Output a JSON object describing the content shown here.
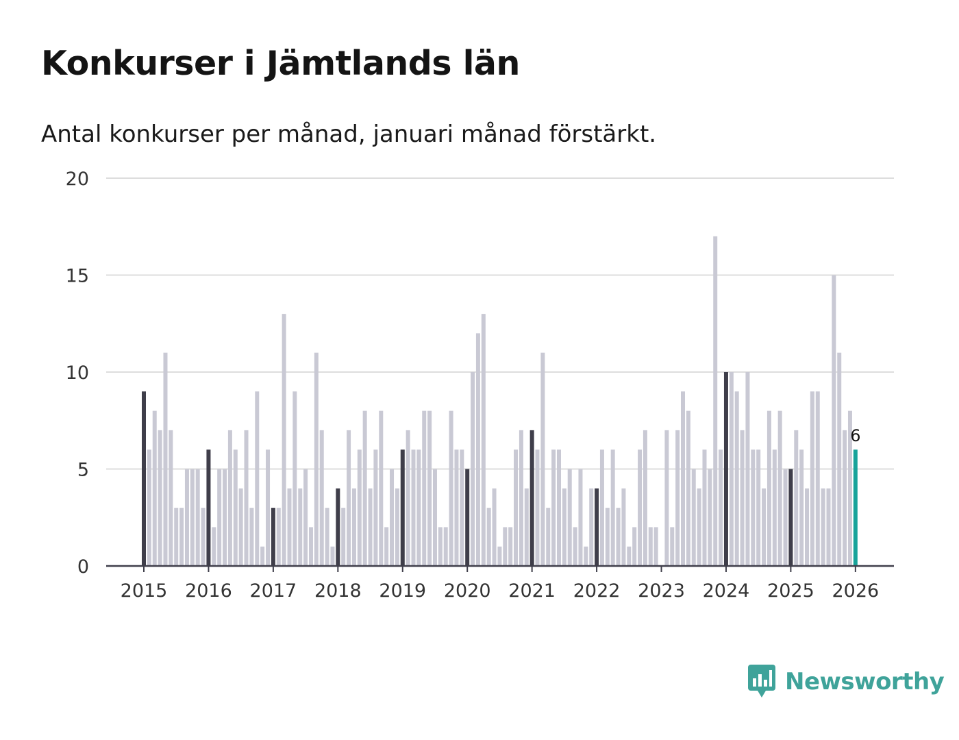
{
  "title": "Konkurser i Jämtlands län",
  "subtitle": "Antal konkurser per månad, januari månad förstärkt.",
  "brand": {
    "name": "Newsworthy",
    "icon": "newsworthy-logo-icon",
    "color": "#3fa39a"
  },
  "colors": {
    "bar": "#c9c9d4",
    "january_bar": "#3f3e4a",
    "latest_bar": "#17a39a",
    "grid": "#dddddd",
    "axis": "#3f3e4a"
  },
  "chart_data": {
    "type": "bar",
    "title": "Konkurser i Jämtlands län",
    "subtitle": "Antal konkurser per månad, januari månad förstärkt.",
    "xlabel": "",
    "ylabel": "",
    "ylim": [
      0,
      20
    ],
    "yticks": [
      "0",
      "5",
      "10",
      "15",
      "20"
    ],
    "xticks": [
      "2015",
      "2016",
      "2017",
      "2018",
      "2019",
      "2020",
      "2021",
      "2022",
      "2023",
      "2024",
      "2025",
      "2026"
    ],
    "grid": true,
    "start": "2015-01",
    "highlight": "January of each year darker; latest month (2026-01) highlighted",
    "latest_label": "6",
    "values": [
      9,
      6,
      8,
      7,
      11,
      7,
      3,
      3,
      5,
      5,
      5,
      3,
      6,
      2,
      5,
      5,
      7,
      6,
      4,
      7,
      3,
      9,
      1,
      6,
      3,
      3,
      13,
      4,
      9,
      4,
      5,
      2,
      11,
      7,
      3,
      1,
      4,
      3,
      7,
      4,
      6,
      8,
      4,
      6,
      8,
      2,
      5,
      4,
      6,
      7,
      6,
      6,
      8,
      8,
      5,
      2,
      2,
      8,
      6,
      6,
      5,
      10,
      12,
      13,
      3,
      4,
      1,
      2,
      2,
      6,
      7,
      4,
      7,
      6,
      11,
      3,
      6,
      6,
      4,
      5,
      2,
      5,
      1,
      4,
      4,
      6,
      3,
      6,
      3,
      4,
      1,
      2,
      6,
      7,
      2,
      2,
      0,
      7,
      2,
      7,
      9,
      8,
      5,
      4,
      6,
      5,
      17,
      6,
      10,
      10,
      9,
      7,
      10,
      6,
      6,
      4,
      8,
      6,
      8,
      5,
      5,
      7,
      6,
      4,
      9,
      9,
      4,
      4,
      15,
      11,
      7,
      8,
      6
    ]
  }
}
